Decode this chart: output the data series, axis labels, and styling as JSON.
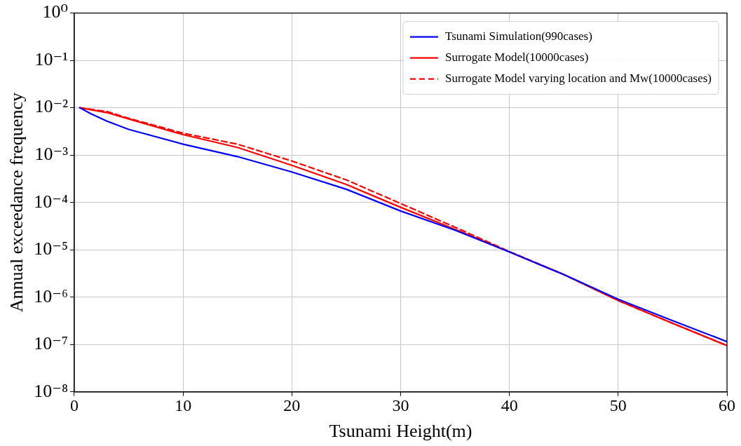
{
  "chart_data": {
    "type": "line",
    "xlabel": "Tsunami Height(m)",
    "ylabel": "Annual exceedance frequency",
    "log": "y",
    "grid": true,
    "legend": "top right",
    "marker": "none",
    "xlim": [
      0,
      60
    ],
    "xticks": [
      0,
      10,
      20,
      30,
      40,
      50,
      60
    ],
    "ylim": [
      1e-08,
      1
    ],
    "yticks": [
      {
        "value": 1e-08,
        "label": "10⁻⁸"
      },
      {
        "value": 1e-07,
        "label": "10⁻⁷"
      },
      {
        "value": 1e-06,
        "label": "10⁻⁶"
      },
      {
        "value": 1e-05,
        "label": "10⁻⁵"
      },
      {
        "value": 0.0001,
        "label": "10⁻⁴"
      },
      {
        "value": 0.001,
        "label": "10⁻³"
      },
      {
        "value": 0.01,
        "label": "10⁻²"
      },
      {
        "value": 0.1,
        "label": "10⁻¹"
      },
      {
        "value": 1,
        "label": "10⁰"
      }
    ],
    "series": [
      {
        "name": "Tsunami Simulation(990cases)",
        "color": "#0000ff",
        "line_style": "solid",
        "x": [
          0.5,
          1.5,
          3,
          5,
          10,
          15,
          20,
          25,
          30,
          35,
          40,
          45,
          50,
          55,
          60
        ],
        "values": [
          0.01,
          0.0075,
          0.0052,
          0.0035,
          0.0017,
          0.00093,
          0.00044,
          0.00019,
          6.6e-05,
          2.6e-05,
          9e-06,
          3e-06,
          9e-07,
          3.2e-07,
          1.15e-07
        ]
      },
      {
        "name": "Surrogate Model(10000cases)",
        "color": "#ff0000",
        "line_style": "solid",
        "x": [
          0.5,
          3,
          5,
          10,
          15,
          20,
          25,
          30,
          35,
          40,
          45,
          50,
          55,
          60
        ],
        "values": [
          0.01,
          0.0079,
          0.0058,
          0.0027,
          0.00145,
          0.00061,
          0.00024,
          7.9e-05,
          2.7e-05,
          9e-06,
          3e-06,
          8.5e-07,
          2.8e-07,
          9.5e-08
        ]
      },
      {
        "name": "Surrogate Model varying location and Mw(10000cases)",
        "color": "#ff0000",
        "line_style": "dashed",
        "x": [
          0.5,
          3,
          5,
          10,
          15,
          20,
          25,
          30,
          35,
          40,
          45,
          50,
          55,
          60
        ],
        "values": [
          0.01,
          0.0083,
          0.006,
          0.0029,
          0.0017,
          0.00075,
          0.0003,
          9.5e-05,
          3e-05,
          9.2e-06,
          3e-06,
          8.5e-07,
          2.8e-07,
          9.5e-08
        ]
      }
    ]
  }
}
